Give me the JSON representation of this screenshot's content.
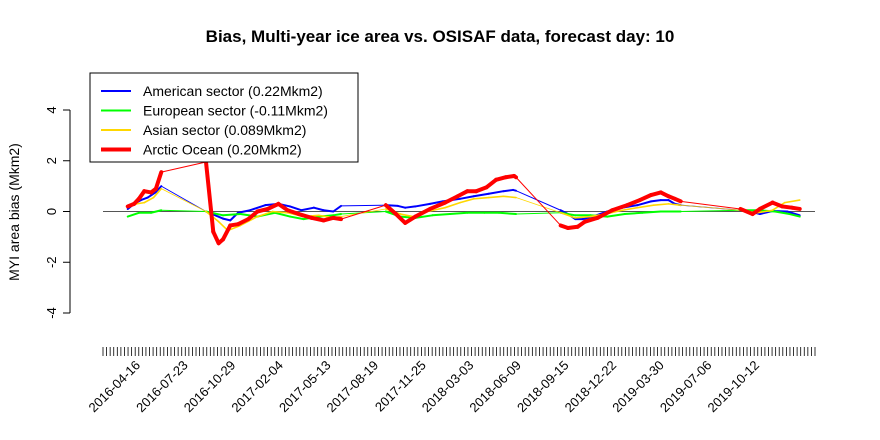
{
  "chart_data": {
    "type": "line",
    "title": "Bias, Multi-year ice area vs. OSISAF data, forecast day: 10",
    "ylabel": "MYI area bias (Mkm2)",
    "xlabel": "",
    "ylim": [
      -4,
      4
    ],
    "yticks": [
      -4,
      -2,
      0,
      2,
      4
    ],
    "x_tick_labels": [
      "2016-04-16",
      "2016-07-23",
      "2016-10-29",
      "2017-02-04",
      "2017-05-13",
      "2017-08-19",
      "2017-11-25",
      "2018-03-03",
      "2018-06-09",
      "2018-09-15",
      "2018-12-22",
      "2019-03-30",
      "2019-07-06",
      "2019-10-12"
    ],
    "legend_position": "top-left",
    "reference_line": 0,
    "series": [
      {
        "name": "American sector (0.22Mkm2)",
        "color": "#0000ff",
        "x": [
          "2016-03-28",
          "2016-04-10",
          "2016-04-24",
          "2016-05-08",
          "2016-05-24",
          "2016-06-05",
          "2016-09-05",
          "2016-10-10",
          "2016-10-25",
          "2016-11-10",
          "2016-12-05",
          "2017-01-05",
          "2017-02-01",
          "2017-02-25",
          "2017-03-20",
          "2017-04-15",
          "2017-05-05",
          "2017-05-25",
          "2017-06-10",
          "2017-09-10",
          "2017-10-05",
          "2017-10-20",
          "2017-11-10",
          "2017-12-10",
          "2018-01-05",
          "2018-02-10",
          "2018-03-10",
          "2018-04-10",
          "2018-05-10",
          "2018-05-30",
          "2018-06-05",
          "2018-09-05",
          "2018-09-20",
          "2018-10-05",
          "2018-10-20",
          "2018-11-10",
          "2018-12-10",
          "2019-01-10",
          "2019-02-10",
          "2019-03-10",
          "2019-03-30",
          "2019-04-15",
          "2019-04-28",
          "2019-05-10",
          "2019-09-10",
          "2019-10-01",
          "2019-10-20",
          "2019-11-15",
          "2019-12-15",
          "2020-01-10"
        ],
        "y": [
          0.1,
          0.3,
          0.45,
          0.55,
          0.75,
          1.0,
          0.0,
          -0.28,
          -0.35,
          -0.05,
          0.05,
          0.25,
          0.3,
          0.2,
          0.05,
          0.15,
          0.05,
          0.0,
          0.22,
          0.25,
          0.22,
          0.15,
          0.2,
          0.3,
          0.4,
          0.5,
          0.6,
          0.7,
          0.8,
          0.85,
          0.82,
          0.05,
          -0.1,
          -0.3,
          -0.3,
          -0.2,
          0.0,
          0.15,
          0.25,
          0.4,
          0.45,
          0.45,
          0.3,
          0.25,
          0.05,
          0.0,
          -0.1,
          0.02,
          0.0,
          -0.15
        ]
      },
      {
        "name": "European sector (-0.11Mkm2)",
        "color": "#00ff00",
        "x": [
          "2016-03-28",
          "2016-04-20",
          "2016-05-15",
          "2016-06-05",
          "2016-09-05",
          "2016-10-10",
          "2016-11-15",
          "2016-12-20",
          "2017-01-25",
          "2017-02-25",
          "2017-03-25",
          "2017-04-25",
          "2017-05-25",
          "2017-06-10",
          "2017-09-10",
          "2017-10-10",
          "2017-11-10",
          "2017-12-15",
          "2018-01-20",
          "2018-02-25",
          "2018-04-01",
          "2018-05-01",
          "2018-06-05",
          "2018-09-05",
          "2018-10-05",
          "2018-11-05",
          "2018-12-10",
          "2019-01-15",
          "2019-02-20",
          "2019-03-30",
          "2019-05-10",
          "2019-09-10",
          "2019-10-15",
          "2019-11-20",
          "2019-12-20",
          "2020-01-10"
        ],
        "y": [
          -0.2,
          -0.05,
          -0.05,
          0.05,
          0.0,
          -0.15,
          -0.1,
          -0.2,
          -0.05,
          -0.2,
          -0.3,
          -0.2,
          -0.15,
          -0.1,
          0.0,
          -0.2,
          -0.25,
          -0.15,
          -0.1,
          -0.05,
          -0.05,
          -0.05,
          -0.1,
          -0.05,
          -0.15,
          -0.15,
          -0.2,
          -0.1,
          -0.05,
          0.0,
          0.0,
          0.05,
          0.05,
          0.0,
          -0.1,
          -0.2
        ]
      },
      {
        "name": "Asian sector (0.089Mkm2)",
        "color": "#ffd700",
        "x": [
          "2016-03-28",
          "2016-04-15",
          "2016-05-01",
          "2016-05-20",
          "2016-06-05",
          "2016-09-05",
          "2016-10-01",
          "2016-10-20",
          "2016-11-15",
          "2016-12-20",
          "2017-01-20",
          "2017-02-20",
          "2017-03-25",
          "2017-04-25",
          "2017-05-25",
          "2017-06-10",
          "2017-09-10",
          "2017-10-10",
          "2017-11-05",
          "2017-12-05",
          "2018-01-10",
          "2018-02-10",
          "2018-03-10",
          "2018-04-10",
          "2018-05-10",
          "2018-06-05",
          "2018-09-05",
          "2018-10-05",
          "2018-11-05",
          "2018-12-05",
          "2019-01-10",
          "2019-02-10",
          "2019-03-15",
          "2019-04-15",
          "2019-05-10",
          "2019-09-10",
          "2019-10-15",
          "2019-11-15",
          "2019-12-10",
          "2020-01-10"
        ],
        "y": [
          0.2,
          0.3,
          0.35,
          0.55,
          0.9,
          0.0,
          -0.4,
          -0.75,
          -0.55,
          -0.2,
          0.0,
          -0.05,
          -0.2,
          -0.15,
          -0.25,
          -0.2,
          0.1,
          -0.1,
          -0.2,
          0.0,
          0.15,
          0.35,
          0.5,
          0.55,
          0.6,
          0.55,
          -0.05,
          -0.25,
          -0.2,
          -0.1,
          0.05,
          0.15,
          0.25,
          0.3,
          0.25,
          0.05,
          -0.05,
          0.05,
          0.35,
          0.45
        ]
      },
      {
        "name": "Arctic Ocean (0.20Mkm2)",
        "color": "#ff0000",
        "x": [
          "2016-03-28",
          "2016-04-10",
          "2016-04-20",
          "2016-05-01",
          "2016-05-15",
          "2016-05-25",
          "2016-06-05",
          "2016-09-05",
          "2016-09-20",
          "2016-10-01",
          "2016-10-10",
          "2016-10-25",
          "2016-11-10",
          "2016-12-01",
          "2016-12-20",
          "2017-01-10",
          "2017-02-01",
          "2017-02-20",
          "2017-03-15",
          "2017-04-10",
          "2017-05-05",
          "2017-05-25",
          "2017-06-10",
          "2017-09-10",
          "2017-10-01",
          "2017-10-20",
          "2017-11-10",
          "2017-12-10",
          "2018-01-10",
          "2018-02-05",
          "2018-02-25",
          "2018-03-15",
          "2018-04-05",
          "2018-04-25",
          "2018-05-15",
          "2018-06-01",
          "2018-06-05",
          "2018-09-05",
          "2018-09-20",
          "2018-10-10",
          "2018-10-25",
          "2018-11-20",
          "2018-12-20",
          "2019-01-20",
          "2019-02-15",
          "2019-03-10",
          "2019-03-30",
          "2019-04-15",
          "2019-04-28",
          "2019-05-10",
          "2019-09-10",
          "2019-10-05",
          "2019-10-20",
          "2019-11-15",
          "2019-12-05",
          "2019-12-25",
          "2020-01-10"
        ],
        "y": [
          0.2,
          0.3,
          0.5,
          0.8,
          0.75,
          0.9,
          1.55,
          1.95,
          -0.8,
          -1.25,
          -1.1,
          -0.55,
          -0.5,
          -0.3,
          0.0,
          0.1,
          0.3,
          0.05,
          -0.1,
          -0.25,
          -0.35,
          -0.25,
          -0.3,
          0.25,
          -0.1,
          -0.45,
          -0.2,
          0.1,
          0.35,
          0.6,
          0.8,
          0.8,
          0.95,
          1.25,
          1.35,
          1.4,
          1.35,
          -0.55,
          -0.65,
          -0.6,
          -0.4,
          -0.25,
          0.05,
          0.25,
          0.45,
          0.65,
          0.75,
          0.6,
          0.5,
          0.4,
          0.1,
          -0.1,
          0.1,
          0.35,
          0.2,
          0.15,
          0.1
        ]
      }
    ]
  }
}
